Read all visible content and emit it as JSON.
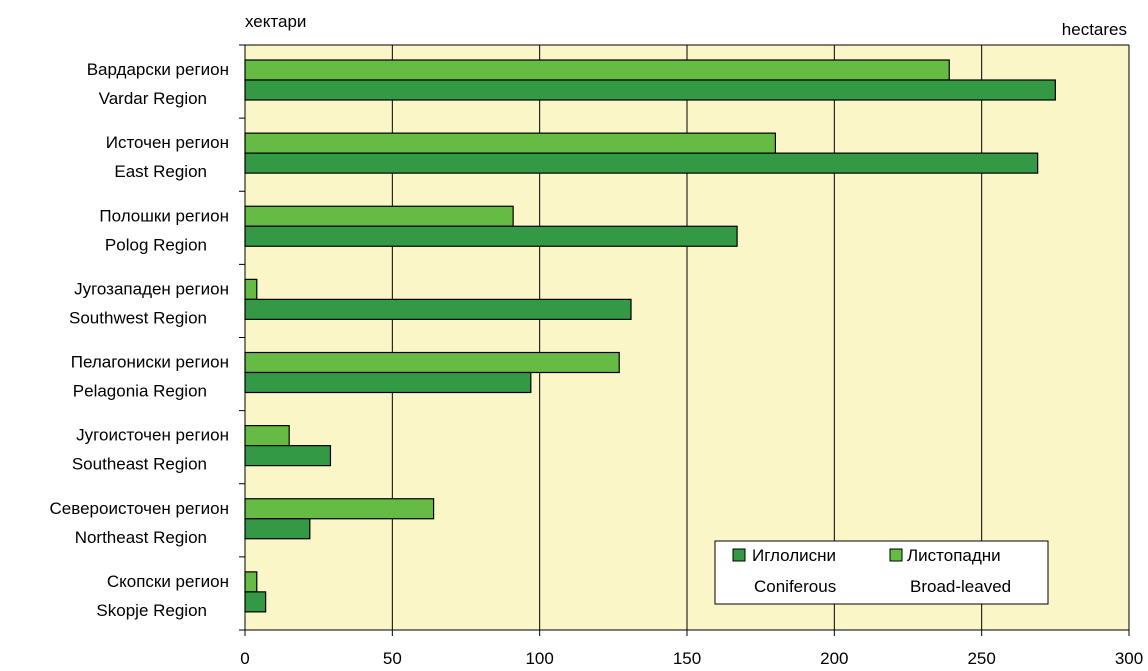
{
  "chart_data": {
    "type": "bar",
    "orientation": "horizontal",
    "unit_left": "хектари",
    "unit_right": "hectares",
    "categories": [
      {
        "mk": "Вардарски регион",
        "en": "Vardar Region"
      },
      {
        "mk": "Источен регион",
        "en": "East Region"
      },
      {
        "mk": "Полошки регион",
        "en": "Polog Region"
      },
      {
        "mk": "Југозападен регион",
        "en": "Southwest Region"
      },
      {
        "mk": "Пелагониски регион",
        "en": "Pelagonia Region"
      },
      {
        "mk": "Југоисточен регион",
        "en": "Southeast Region"
      },
      {
        "mk": "Североисточен регион",
        "en": "Northeast Region"
      },
      {
        "mk": "Скопски регион",
        "en": "Skopje Region"
      }
    ],
    "series": [
      {
        "name_mk": "Иглолисни",
        "name_en": "Coniferous",
        "color": "#339944",
        "values": [
          275,
          269,
          167,
          131,
          97,
          29,
          22,
          7
        ]
      },
      {
        "name_mk": "Листопадни",
        "name_en": "Broad-leaved",
        "color": "#66bb44",
        "values": [
          239,
          180,
          91,
          4,
          127,
          15,
          64,
          4
        ]
      }
    ],
    "x_ticks": [
      "0",
      "50",
      "100",
      "150",
      "200",
      "250",
      "300"
    ],
    "xlim": [
      0,
      300
    ],
    "grid": true,
    "plot_background": "#fbf6c8",
    "legend_position": "bottom-right"
  }
}
